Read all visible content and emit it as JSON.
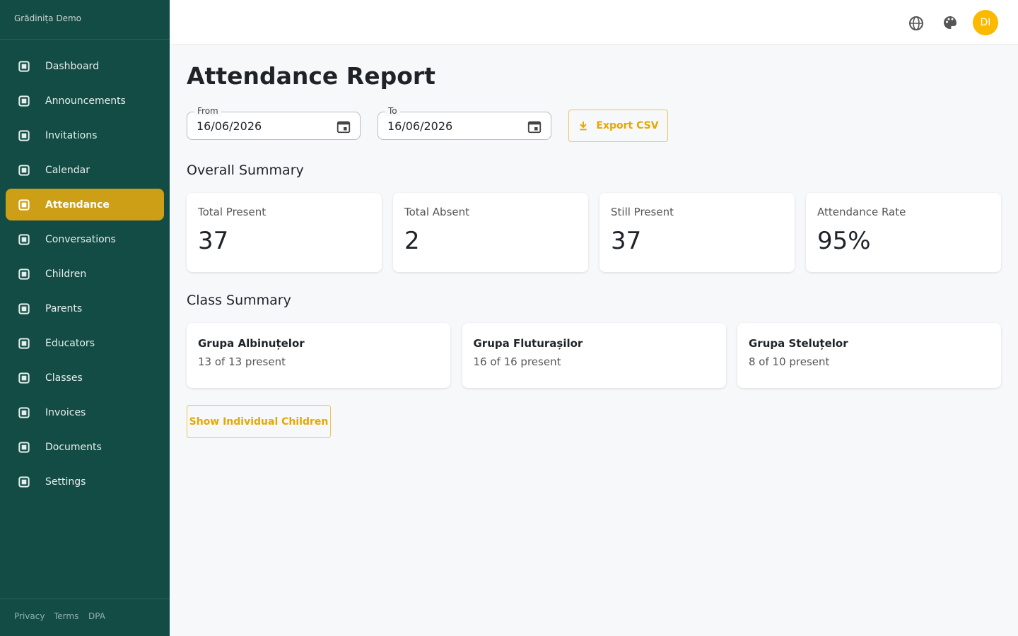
{
  "sidebar": {
    "brand": "Grădinița Demo",
    "nav": [
      "Dashboard",
      "Announcements",
      "Invitations",
      "Calendar",
      "Attendance",
      "Conversations",
      "Children",
      "Parents",
      "Educators",
      "Classes",
      "Invoices",
      "Documents",
      "Settings"
    ],
    "active": "Attendance",
    "footer": [
      "Privacy",
      "Terms",
      "DPA"
    ]
  },
  "header": {
    "avatar": "DI"
  },
  "main": {
    "title": "Attendance Report",
    "filters": {
      "from_label": "From",
      "from": "16/06/2026",
      "to_label": "To",
      "to": "16/06/2026",
      "export": "Export CSV"
    },
    "overall": {
      "heading": "Overall Summary",
      "cards": [
        {
          "label": "Total Present",
          "value": "37"
        },
        {
          "label": "Total Absent",
          "value": "2"
        },
        {
          "label": "Still Present",
          "value": "37"
        },
        {
          "label": "Attendance Rate",
          "value": "95%"
        }
      ]
    },
    "classes": {
      "heading": "Class Summary",
      "cards": [
        {
          "name": "Grupa Albinuțelor",
          "status": "13 of 13 present"
        },
        {
          "name": "Grupa Fluturașilor",
          "status": "16 of 16 present"
        },
        {
          "name": "Grupa Steluțelor",
          "status": "8 of 10 present"
        }
      ]
    },
    "button": "Show Individual Children"
  }
}
